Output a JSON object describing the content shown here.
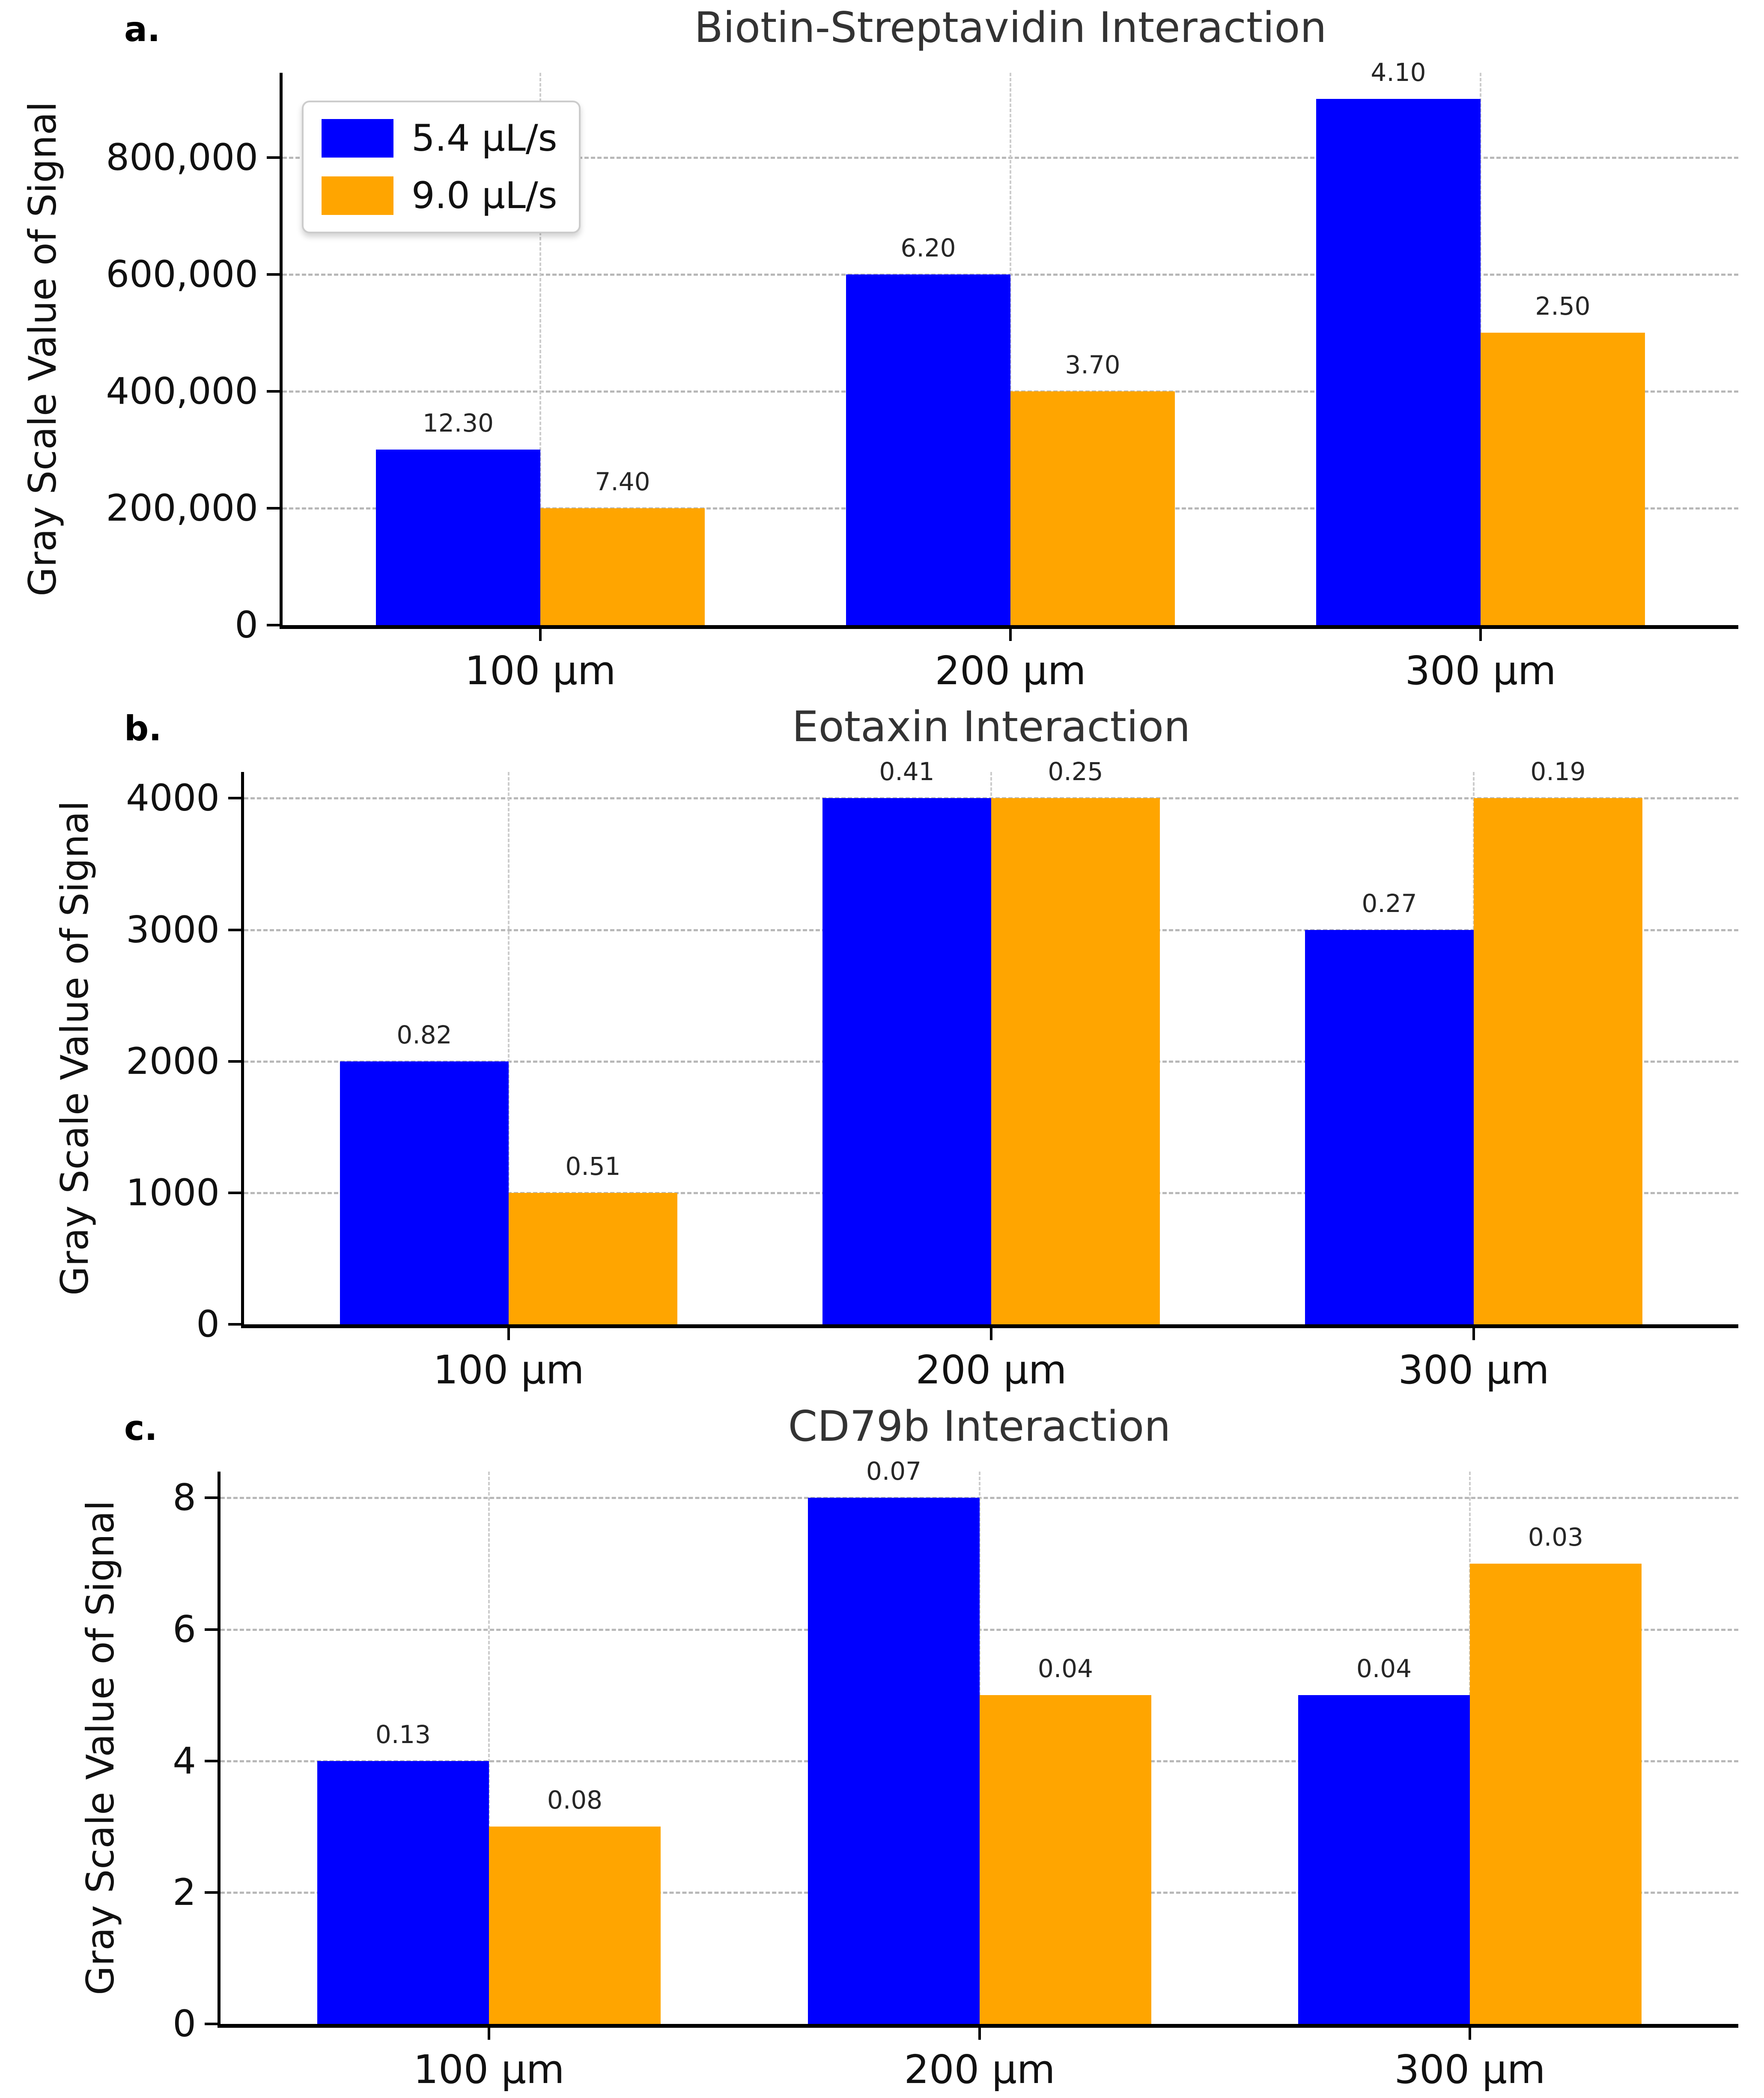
{
  "figure": {
    "background": "#ffffff",
    "blue": "#0000ff",
    "orange": "#ffa500"
  },
  "legend": {
    "position": "upper-left",
    "entries": [
      {
        "label": "5.4 μL/s",
        "color": "#0000ff"
      },
      {
        "label": "9.0 μL/s",
        "color": "#ffa500"
      }
    ]
  },
  "chart_data": [
    {
      "type": "bar",
      "panel_label": "a.",
      "title": "Biotin-Streptavidin Interaction",
      "ylabel": "Gray Scale Value of Signal",
      "categories": [
        "100 μm",
        "200 μm",
        "300 μm"
      ],
      "series": [
        {
          "name": "5.4 μL/s",
          "color": "#0000ff",
          "values": [
            300000,
            600000,
            900000
          ],
          "bar_labels": [
            "12.30",
            "6.20",
            "4.10"
          ]
        },
        {
          "name": "9.0 μL/s",
          "color": "#ffa500",
          "values": [
            200000,
            400000,
            500000
          ],
          "bar_labels": [
            "7.40",
            "3.70",
            "2.50"
          ]
        }
      ],
      "yticks": [
        0,
        200000,
        400000,
        600000,
        800000
      ],
      "ytick_labels": [
        "0",
        "200,000",
        "400,000",
        "600,000",
        "800,000"
      ],
      "ylim": [
        0,
        945000
      ],
      "grid": true,
      "legend_visible": true
    },
    {
      "type": "bar",
      "panel_label": "b.",
      "title": "Eotaxin Interaction",
      "ylabel": "Gray Scale Value of Signal",
      "categories": [
        "100 μm",
        "200 μm",
        "300 μm"
      ],
      "series": [
        {
          "name": "5.4 μL/s",
          "color": "#0000ff",
          "values": [
            2000,
            4000,
            3000
          ],
          "bar_labels": [
            "0.82",
            "0.41",
            "0.27"
          ]
        },
        {
          "name": "9.0 μL/s",
          "color": "#ffa500",
          "values": [
            1000,
            4000,
            4000
          ],
          "bar_labels": [
            "0.51",
            "0.25",
            "0.19"
          ]
        }
      ],
      "yticks": [
        0,
        1000,
        2000,
        3000,
        4000
      ],
      "ytick_labels": [
        "0",
        "1000",
        "2000",
        "3000",
        "4000"
      ],
      "ylim": [
        0,
        4200
      ],
      "grid": true,
      "legend_visible": false
    },
    {
      "type": "bar",
      "panel_label": "c.",
      "title": "CD79b Interaction",
      "ylabel": "Gray Scale Value of Signal",
      "categories": [
        "100 μm",
        "200 μm",
        "300 μm"
      ],
      "series": [
        {
          "name": "5.4 μL/s",
          "color": "#0000ff",
          "values": [
            4,
            8,
            5
          ],
          "bar_labels": [
            "0.13",
            "0.07",
            "0.04"
          ]
        },
        {
          "name": "9.0 μL/s",
          "color": "#ffa500",
          "values": [
            3,
            5,
            7
          ],
          "bar_labels": [
            "0.08",
            "0.04",
            "0.03"
          ]
        }
      ],
      "yticks": [
        0,
        2,
        4,
        6,
        8
      ],
      "ytick_labels": [
        "0",
        "2",
        "4",
        "6",
        "8"
      ],
      "ylim": [
        0,
        8.4
      ],
      "grid": true,
      "legend_visible": false
    }
  ]
}
